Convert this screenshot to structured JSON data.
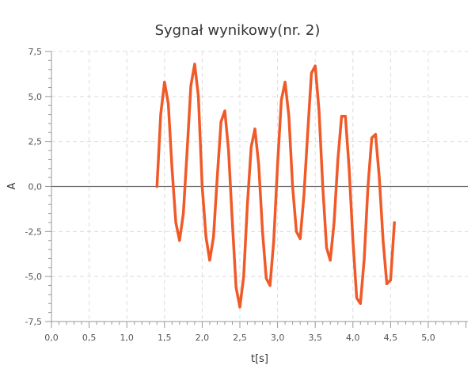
{
  "chart_data": {
    "type": "line",
    "title": "Sygnał wynikowy(nr. 2)",
    "xlabel": "t[s]",
    "ylabel": "A",
    "xlim": [
      0,
      5.5
    ],
    "ylim": [
      -7.5,
      7.5
    ],
    "x_ticks": [
      0.0,
      0.5,
      1.0,
      1.5,
      2.0,
      2.5,
      3.0,
      3.5,
      4.0,
      4.5,
      5.0
    ],
    "x_tick_labels": [
      "0,0",
      "0,5",
      "1,0",
      "1,5",
      "2,0",
      "2,5",
      "3,0",
      "3,5",
      "4,0",
      "4,5",
      "5,0"
    ],
    "y_ticks": [
      7.5,
      5.0,
      2.5,
      0.0,
      -2.5,
      -5.0,
      -7.5
    ],
    "y_tick_labels": [
      "7,5",
      "5,0",
      "2,5",
      "0,0",
      "-2,5",
      "-5,0",
      "-7,5"
    ],
    "grid": true,
    "series_color": "#f05a28",
    "series": [
      {
        "points": [
          [
            1.4,
            0.0
          ],
          [
            1.45,
            4.0
          ],
          [
            1.5,
            5.8
          ],
          [
            1.55,
            4.6
          ],
          [
            1.6,
            1.0
          ],
          [
            1.65,
            -2.0
          ],
          [
            1.7,
            -3.0
          ],
          [
            1.75,
            -1.5
          ],
          [
            1.8,
            2.0
          ],
          [
            1.85,
            5.6
          ],
          [
            1.9,
            6.8
          ],
          [
            1.95,
            5.0
          ],
          [
            2.0,
            0.0
          ],
          [
            2.05,
            -2.8
          ],
          [
            2.1,
            -4.1
          ],
          [
            2.15,
            -2.8
          ],
          [
            2.2,
            0.5
          ],
          [
            2.25,
            3.6
          ],
          [
            2.3,
            4.2
          ],
          [
            2.35,
            2.0
          ],
          [
            2.4,
            -2.0
          ],
          [
            2.45,
            -5.6
          ],
          [
            2.5,
            -6.7
          ],
          [
            2.55,
            -5.0
          ],
          [
            2.6,
            -1.0
          ],
          [
            2.65,
            2.2
          ],
          [
            2.7,
            3.2
          ],
          [
            2.75,
            1.2
          ],
          [
            2.8,
            -2.5
          ],
          [
            2.85,
            -5.1
          ],
          [
            2.9,
            -5.5
          ],
          [
            2.95,
            -3.0
          ],
          [
            3.0,
            1.2
          ],
          [
            3.05,
            4.8
          ],
          [
            3.1,
            5.8
          ],
          [
            3.15,
            3.9
          ],
          [
            3.2,
            0.0
          ],
          [
            3.25,
            -2.5
          ],
          [
            3.3,
            -2.9
          ],
          [
            3.35,
            -0.5
          ],
          [
            3.4,
            3.0
          ],
          [
            3.45,
            6.3
          ],
          [
            3.5,
            6.7
          ],
          [
            3.55,
            4.2
          ],
          [
            3.6,
            0.0
          ],
          [
            3.65,
            -3.4
          ],
          [
            3.7,
            -4.1
          ],
          [
            3.75,
            -2.0
          ],
          [
            3.8,
            1.5
          ],
          [
            3.85,
            3.9
          ],
          [
            3.9,
            3.9
          ],
          [
            3.95,
            1.0
          ],
          [
            4.0,
            -3.0
          ],
          [
            4.05,
            -6.2
          ],
          [
            4.1,
            -6.5
          ],
          [
            4.15,
            -4.0
          ],
          [
            4.2,
            0.0
          ],
          [
            4.25,
            2.7
          ],
          [
            4.3,
            2.9
          ],
          [
            4.35,
            0.5
          ],
          [
            4.4,
            -3.0
          ],
          [
            4.45,
            -5.4
          ],
          [
            4.5,
            -5.2
          ],
          [
            4.55,
            -2.0
          ]
        ]
      }
    ]
  }
}
